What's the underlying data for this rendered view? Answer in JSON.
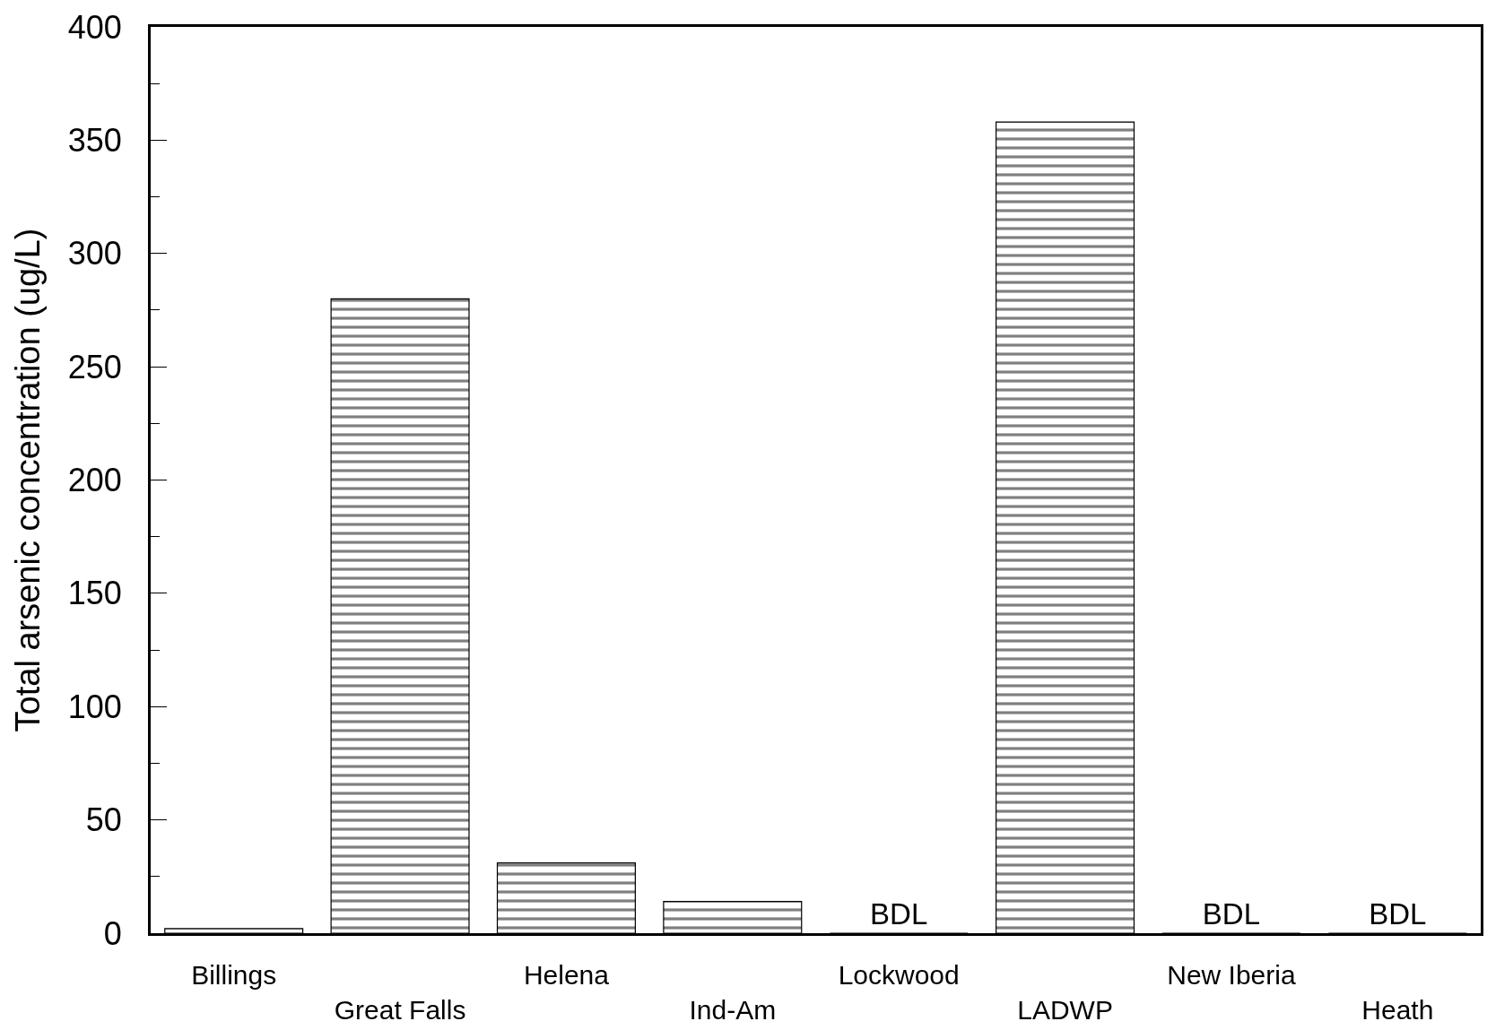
{
  "chart_data": {
    "type": "bar",
    "ylabel": "Total arsenic concentration (ug/L)",
    "categories": [
      "Billings",
      "Great Falls",
      "Helena",
      "Ind-Am",
      "Lockwood",
      "LADWP",
      "New Iberia",
      "Heath"
    ],
    "values": [
      2,
      280,
      31,
      14,
      0,
      358,
      0,
      0
    ],
    "value_labels": [
      null,
      null,
      null,
      null,
      "BDL",
      null,
      "BDL",
      "BDL"
    ],
    "color": "#000000",
    "ylim": [
      0,
      400
    ],
    "yticks": [
      0,
      {
        "value": 25,
        "label": null
      },
      50,
      {
        "value": 75,
        "label": null
      },
      100,
      {
        "value": 125,
        "label": null
      },
      150,
      {
        "value": 175,
        "label": null
      },
      200,
      {
        "value": 225,
        "label": null
      },
      250,
      {
        "value": 275,
        "label": null
      },
      300,
      {
        "value": 325,
        "label": null
      },
      350,
      {
        "value": 375,
        "label": null
      },
      400
    ]
  }
}
